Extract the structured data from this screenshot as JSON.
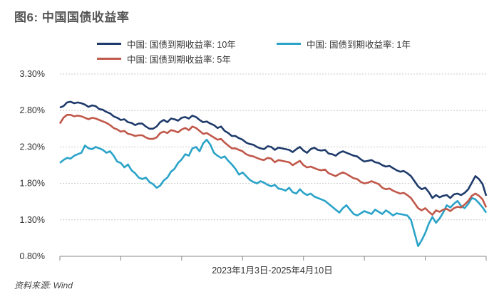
{
  "title": "图6: 中国国债收益率",
  "source": "资料来源: Wind",
  "chart_data": {
    "type": "line",
    "title": "图6: 中国国债收益率",
    "xlabel": "2023年1月3日-2025年4月10日",
    "ylabel": "",
    "ylim": [
      0.8,
      3.3
    ],
    "yticks": [
      "3.30%",
      "2.80%",
      "2.30%",
      "1.80%",
      "1.30%",
      "0.80%"
    ],
    "ytick_values": [
      3.3,
      2.8,
      2.3,
      1.8,
      1.3,
      0.8
    ],
    "grid": true,
    "legend_position": "top",
    "x_count": 120,
    "series": [
      {
        "name": "中国: 国债到期收益率: 10年",
        "color": "#1f3b6b",
        "values": [
          2.84,
          2.86,
          2.91,
          2.92,
          2.9,
          2.91,
          2.9,
          2.88,
          2.85,
          2.87,
          2.86,
          2.82,
          2.81,
          2.78,
          2.76,
          2.72,
          2.7,
          2.67,
          2.68,
          2.64,
          2.63,
          2.6,
          2.62,
          2.62,
          2.58,
          2.55,
          2.55,
          2.58,
          2.64,
          2.67,
          2.64,
          2.69,
          2.68,
          2.66,
          2.7,
          2.71,
          2.69,
          2.73,
          2.71,
          2.67,
          2.64,
          2.65,
          2.62,
          2.6,
          2.56,
          2.58,
          2.52,
          2.49,
          2.45,
          2.45,
          2.42,
          2.4,
          2.36,
          2.34,
          2.33,
          2.3,
          2.28,
          2.27,
          2.31,
          2.3,
          2.26,
          2.29,
          2.28,
          2.27,
          2.26,
          2.23,
          2.27,
          2.3,
          2.25,
          2.22,
          2.27,
          2.29,
          2.26,
          2.25,
          2.26,
          2.21,
          2.2,
          2.18,
          2.22,
          2.24,
          2.22,
          2.2,
          2.18,
          2.17,
          2.13,
          2.1,
          2.11,
          2.12,
          2.09,
          2.08,
          2.05,
          2.03,
          2.04,
          2.01,
          1.98,
          1.96,
          1.97,
          1.94,
          1.9,
          1.83,
          1.76,
          1.72,
          1.74,
          1.68,
          1.6,
          1.64,
          1.61,
          1.63,
          1.64,
          1.6,
          1.65,
          1.66,
          1.64,
          1.67,
          1.72,
          1.81,
          1.9,
          1.86,
          1.79,
          1.63
        ]
      },
      {
        "name": "中国: 国债到期收益率: 5年",
        "color": "#c0584a",
        "values": [
          2.62,
          2.7,
          2.74,
          2.74,
          2.72,
          2.73,
          2.72,
          2.7,
          2.68,
          2.7,
          2.69,
          2.67,
          2.65,
          2.63,
          2.6,
          2.56,
          2.54,
          2.51,
          2.52,
          2.48,
          2.47,
          2.45,
          2.46,
          2.46,
          2.43,
          2.41,
          2.41,
          2.43,
          2.49,
          2.51,
          2.49,
          2.53,
          2.52,
          2.5,
          2.54,
          2.56,
          2.53,
          2.58,
          2.56,
          2.52,
          2.48,
          2.49,
          2.46,
          2.43,
          2.4,
          2.41,
          2.36,
          2.32,
          2.28,
          2.28,
          2.26,
          2.24,
          2.2,
          2.18,
          2.17,
          2.15,
          2.13,
          2.12,
          2.15,
          2.14,
          2.09,
          2.12,
          2.11,
          2.1,
          2.09,
          2.05,
          2.08,
          2.11,
          2.05,
          2.02,
          2.03,
          2.01,
          1.99,
          1.98,
          1.99,
          1.94,
          1.92,
          1.9,
          1.93,
          1.95,
          1.93,
          1.9,
          1.87,
          1.86,
          1.82,
          1.8,
          1.81,
          1.83,
          1.81,
          1.79,
          1.74,
          1.72,
          1.73,
          1.7,
          1.68,
          1.66,
          1.67,
          1.64,
          1.6,
          1.53,
          1.46,
          1.43,
          1.46,
          1.41,
          1.37,
          1.43,
          1.41,
          1.44,
          1.45,
          1.42,
          1.46,
          1.48,
          1.47,
          1.51,
          1.56,
          1.63,
          1.66,
          1.63,
          1.58,
          1.47
        ]
      },
      {
        "name": "中国: 国债到期收益率: 1年",
        "color": "#2aa3c8",
        "values": [
          2.08,
          2.12,
          2.15,
          2.14,
          2.18,
          2.2,
          2.22,
          2.32,
          2.28,
          2.27,
          2.3,
          2.28,
          2.26,
          2.22,
          2.24,
          2.18,
          2.1,
          2.08,
          2.02,
          2.06,
          1.98,
          1.94,
          1.88,
          1.86,
          1.88,
          1.82,
          1.79,
          1.74,
          1.77,
          1.84,
          1.88,
          1.96,
          2.0,
          2.08,
          2.13,
          2.2,
          2.18,
          2.28,
          2.3,
          2.24,
          2.35,
          2.4,
          2.33,
          2.22,
          2.18,
          2.15,
          2.17,
          2.11,
          2.06,
          2.0,
          1.92,
          1.95,
          1.9,
          1.85,
          1.82,
          1.8,
          1.83,
          1.81,
          1.78,
          1.76,
          1.78,
          1.73,
          1.72,
          1.7,
          1.74,
          1.68,
          1.66,
          1.72,
          1.67,
          1.64,
          1.66,
          1.62,
          1.6,
          1.58,
          1.56,
          1.52,
          1.48,
          1.44,
          1.4,
          1.46,
          1.5,
          1.44,
          1.38,
          1.36,
          1.39,
          1.42,
          1.4,
          1.38,
          1.44,
          1.41,
          1.38,
          1.43,
          1.4,
          1.36,
          1.39,
          1.38,
          1.37,
          1.36,
          1.3,
          1.12,
          0.94,
          1.02,
          1.12,
          1.25,
          1.34,
          1.26,
          1.32,
          1.4,
          1.5,
          1.47,
          1.52,
          1.56,
          1.49,
          1.46,
          1.52,
          1.6,
          1.58,
          1.53,
          1.47,
          1.4
        ]
      }
    ]
  }
}
